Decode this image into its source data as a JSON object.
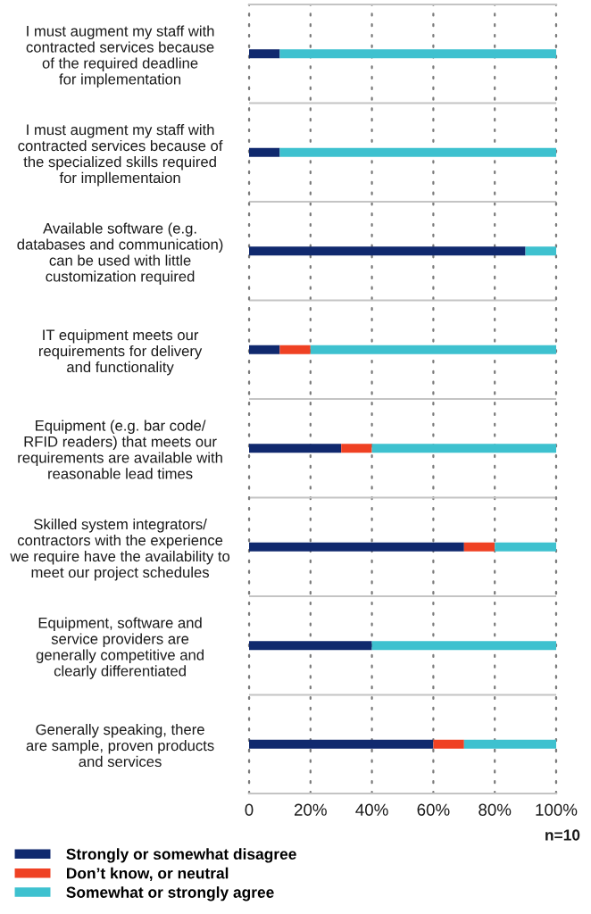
{
  "chart_data": {
    "type": "bar",
    "orientation": "horizontal",
    "stacked": true,
    "categories": [
      "I must augment my staff with\ncontracted services because\nof the required deadline\nfor implementation",
      "I must augment my staff with\ncontracted services because of\nthe specialized skills required\nfor impllementaion",
      "Available software (e.g.\ndatabases and communication)\ncan be used with little\ncustomization required",
      "IT equipment meets our\nrequirements for delivery\nand functionality",
      "Equipment (e.g. bar code/\nRFID readers) that meets our\nrequirements are available with\nreasonable lead times",
      "Skilled system integrators/\ncontractors with the experience\nwe require have the availability to\nmeet our project schedules",
      "Equipment, software and\nservice providers are\ngenerally competitive and\nclearly differentiated",
      "Generally speaking, there\nare sample, proven products\nand services"
    ],
    "series": [
      {
        "name": "Strongly or somewhat disagree",
        "color": "#10296e",
        "values": [
          10,
          10,
          90,
          10,
          30,
          70,
          40,
          60
        ]
      },
      {
        "name": "Don’t know, or neutral",
        "color": "#ef4123",
        "values": [
          0,
          0,
          0,
          10,
          10,
          10,
          0,
          10
        ]
      },
      {
        "name": "Somewhat or strongly agree",
        "color": "#3ec1cf",
        "values": [
          90,
          90,
          10,
          80,
          60,
          20,
          60,
          30
        ]
      }
    ],
    "xlim": [
      0,
      100
    ],
    "xticks": [
      0,
      {
        "value": 20,
        "label": "20%"
      },
      {
        "value": 40,
        "label": "40%"
      },
      {
        "value": 60,
        "label": "60%"
      },
      {
        "value": 80,
        "label": "80%"
      },
      {
        "value": 100,
        "label": "100%"
      }
    ],
    "grid": true,
    "legend": "bottom left",
    "annotations": [
      "n=10"
    ]
  }
}
